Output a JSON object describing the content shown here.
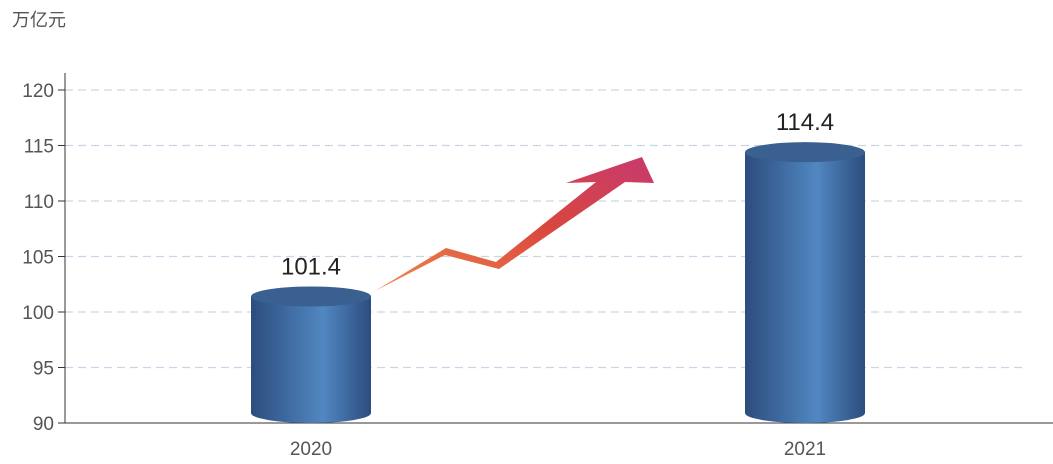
{
  "chart_data": {
    "type": "bar",
    "unit_label": "万亿元",
    "categories": [
      "2020",
      "2021"
    ],
    "series": [
      {
        "values": [
          101.4,
          114.4
        ]
      }
    ],
    "data_labels": [
      "101.4",
      "114.4"
    ],
    "ylim": [
      90,
      120
    ],
    "yticks": [
      90,
      95,
      100,
      105,
      110,
      115,
      120
    ],
    "grid": true,
    "bar_style": "cylinder",
    "annotation": "upward-arrow",
    "colors": {
      "bar_dark": "#2c4d7e",
      "bar_light": "#5187c1",
      "bar_top": "#3a5f91",
      "arrow_start": "#f08a4b",
      "arrow_mid": "#d9463f",
      "arrow_end": "#c73a6e",
      "grid": "#c9d6e8",
      "axis": "#333333"
    }
  }
}
